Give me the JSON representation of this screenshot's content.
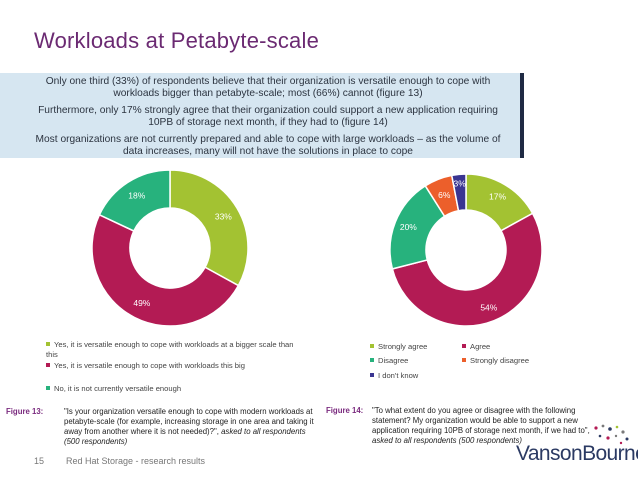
{
  "slide": {
    "title": "Workloads at Petabyte-scale",
    "page_number": "15",
    "footer_text": "Red Hat Storage - research results",
    "logo_text": "VansonBourne"
  },
  "callout": {
    "p1": "Only one third (33%) of respondents believe that their organization is versatile enough to cope with workloads bigger than petabyte-scale; most (66%) cannot (figure 13)",
    "p2": "Furthermore, only 17% strongly agree that their organization could support a new application requiring 10PB of storage next month, if they had to (figure 14)",
    "p3": "Most organizations are not currently prepared and able to cope with large workloads – as the volume of data increases, many will not have the solutions in place to cope"
  },
  "colors": {
    "title": "#6b2a72",
    "green": "#a3c232",
    "crimson": "#b31b54",
    "teal": "#27b27d",
    "orange": "#ec5f2b",
    "navy": "#3a3591"
  },
  "chart_data": [
    {
      "type": "pie",
      "donut": true,
      "figure": "Figure 13",
      "categories": [
        "Yes, it is versatile enough to cope with workloads at a bigger scale than this",
        "Yes, it is versatile enough to cope with workloads this big",
        "No, it is not currently versatile enough"
      ],
      "values": [
        33,
        49,
        18
      ],
      "labels": [
        "33%",
        "49%",
        "18%"
      ],
      "colors": [
        "#a3c232",
        "#b31b54",
        "#27b27d"
      ],
      "caption_label": "Figure 13:",
      "caption": "\"Is your organization versatile enough to cope with modern workloads at petabyte-scale (for example, increasing storage in one area and taking it away from another where it is not needed)?\",",
      "caption_note": "asked to all respondents (500 respondents)"
    },
    {
      "type": "pie",
      "donut": true,
      "figure": "Figure 14",
      "categories": [
        "Strongly agree",
        "Agree",
        "Disagree",
        "Strongly disagree",
        "I don't know"
      ],
      "values": [
        17,
        54,
        20,
        6,
        3
      ],
      "labels": [
        "17%",
        "54%",
        "20%",
        "6%",
        "3%"
      ],
      "colors": [
        "#a3c232",
        "#b31b54",
        "#27b27d",
        "#ec5f2b",
        "#3a3591"
      ],
      "caption_label": "Figure 14:",
      "caption": "\"To what extent do you agree or disagree with the following statement? My organization would be able to support a new application requiring 10PB of storage next month, if we had to\",",
      "caption_note": "asked to all respondents (500 respondents)"
    }
  ]
}
